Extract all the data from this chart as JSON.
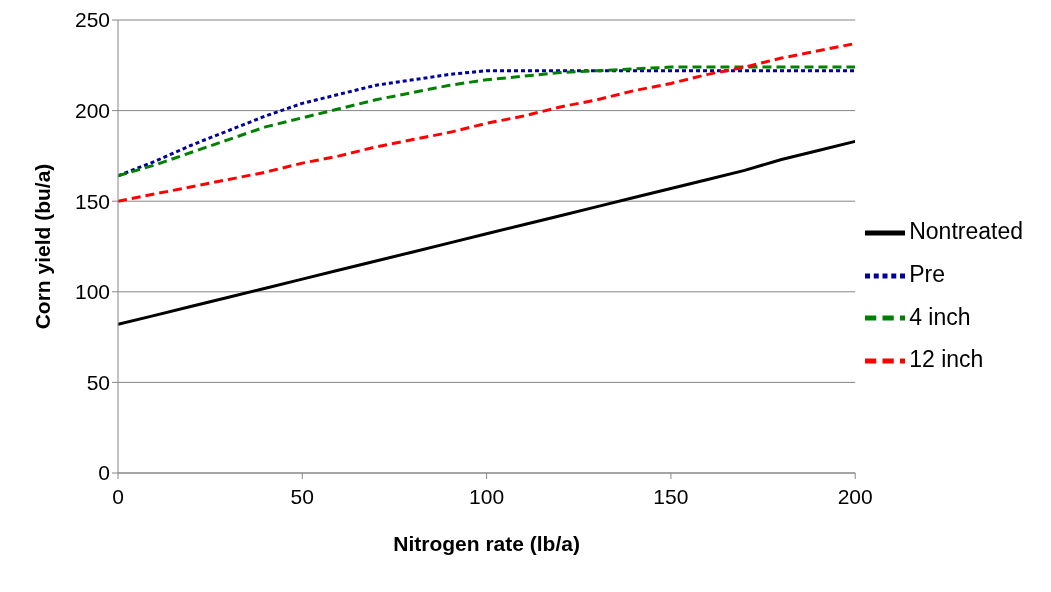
{
  "chart_data": {
    "type": "line",
    "xlabel": "Nitrogen rate (lb/a)",
    "ylabel": "Corn yield (bu/a)",
    "x": [
      0,
      10,
      20,
      30,
      40,
      50,
      60,
      70,
      80,
      90,
      100,
      110,
      120,
      130,
      140,
      150,
      160,
      170,
      180,
      190,
      200
    ],
    "series": [
      {
        "name": "Nontreated",
        "color": "#000000",
        "line_style": "solid",
        "values": [
          82,
          87,
          92,
          97,
          102,
          107,
          112,
          117,
          122,
          127,
          132,
          137,
          142,
          147,
          152,
          157,
          162,
          167,
          173,
          178,
          183
        ]
      },
      {
        "name": "Pre",
        "color": "#00009a",
        "line_style": "dotted",
        "values": [
          164,
          172,
          181,
          189,
          197,
          204,
          209,
          214,
          217,
          220,
          222,
          222,
          222,
          222,
          222,
          222,
          222,
          222,
          222,
          222,
          222
        ]
      },
      {
        "name": "4 inch",
        "color": "#008000",
        "line_style": "dashed",
        "values": [
          164,
          170,
          177,
          184,
          191,
          196,
          201,
          206,
          210,
          214,
          217,
          219,
          221,
          222,
          223,
          224,
          224,
          224,
          224,
          224,
          224
        ]
      },
      {
        "name": "12 inch",
        "color": "#ff0000",
        "line_style": "dashed",
        "values": [
          150,
          154,
          158,
          162,
          166,
          171,
          175,
          180,
          184,
          188,
          193,
          197,
          202,
          206,
          211,
          215,
          220,
          224,
          229,
          233,
          237
        ]
      }
    ],
    "xlim": [
      0,
      200
    ],
    "xticks": [
      0,
      50,
      100,
      150,
      200
    ],
    "ylim": [
      0,
      250
    ],
    "yticks": [
      0,
      50,
      100,
      150,
      200,
      250
    ],
    "grid": "y",
    "legend": "right",
    "marker": "none"
  }
}
